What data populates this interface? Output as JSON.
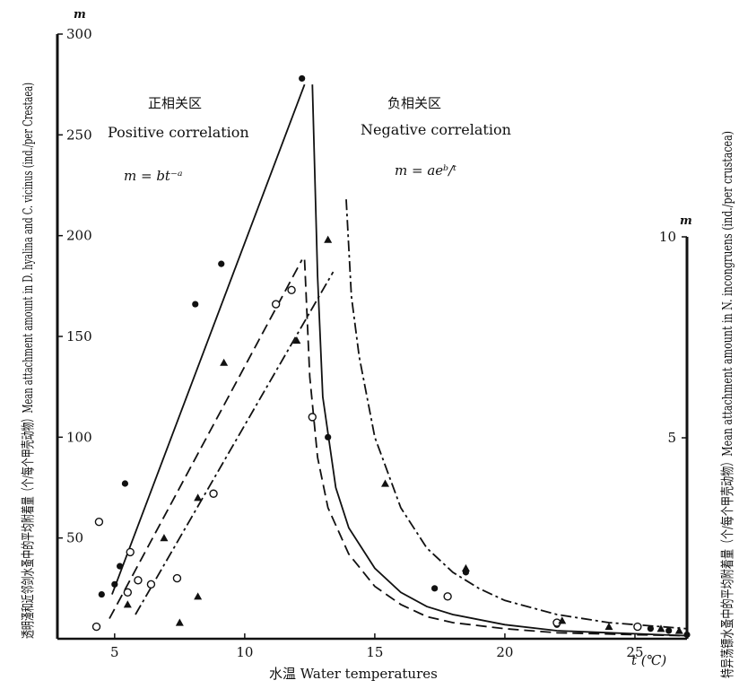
{
  "chart_data": {
    "type": "scatter",
    "x_axis": {
      "label": "水温 Water temperatures",
      "unit_label": "t (℃)",
      "range": [
        2.8,
        27
      ],
      "ticks": [
        5,
        10,
        15,
        20,
        25
      ],
      "tick_labels": [
        "5",
        "10",
        "15",
        "20",
        "25"
      ]
    },
    "y_axis_left": {
      "label": "透明溞和近邻剑水蚤中的平均附着量（个/每个甲壳动物）Mean attachment amount in D. hyalina and C. vicinus (ind./per Crestaea)",
      "symbol": "m",
      "range": [
        0,
        300
      ],
      "ticks": [
        50,
        100,
        150,
        200,
        250,
        300
      ],
      "tick_labels": [
        "50",
        "100",
        "150",
        "200",
        "250",
        "300"
      ]
    },
    "y_axis_right": {
      "label": "特异荡镖水蚤中的平均附着量（个/每个甲壳动物）Mean attachment amount in N. incongruens (ind./per crustacea)",
      "symbol": "m",
      "range": [
        0,
        10
      ],
      "ticks": [
        5,
        10
      ],
      "tick_labels": [
        "5",
        "10"
      ]
    },
    "regions": [
      {
        "title_cn": "正相关区",
        "title_en": "Positive correlation",
        "formula": "m = bt⁻ᵃ"
      },
      {
        "title_cn": "负相关区",
        "title_en": "Negative correlation",
        "formula": "m = aeᵇ/ᵗ"
      }
    ],
    "series": [
      {
        "marker": "filled-circle",
        "line": "solid",
        "points": [
          [
            4.5,
            22
          ],
          [
            5.0,
            27
          ],
          [
            5.2,
            36
          ],
          [
            5.4,
            77
          ],
          [
            8.1,
            166
          ],
          [
            9.1,
            186
          ],
          [
            12.2,
            278
          ],
          [
            13.2,
            100
          ],
          [
            17.3,
            25
          ],
          [
            18.5,
            33
          ],
          [
            22.0,
            7
          ],
          [
            25.6,
            5
          ],
          [
            26.3,
            4
          ],
          [
            27.0,
            2
          ]
        ],
        "curve": {
          "rising": [
            [
              4.9,
              22
            ],
            [
              12.3,
              275
            ]
          ],
          "falling": [
            [
              12.6,
              275
            ],
            [
              12.8,
              180
            ],
            [
              13.0,
              120
            ],
            [
              13.5,
              75
            ],
            [
              14,
              55
            ],
            [
              15,
              35
            ],
            [
              16,
              23
            ],
            [
              17,
              16
            ],
            [
              18,
              12
            ],
            [
              20,
              7
            ],
            [
              22,
              4
            ],
            [
              24,
              3
            ],
            [
              26,
              2
            ],
            [
              27,
              1.5
            ]
          ]
        }
      },
      {
        "marker": "open-circle",
        "line": "dashed",
        "points": [
          [
            4.3,
            6
          ],
          [
            4.4,
            58
          ],
          [
            5.5,
            23
          ],
          [
            5.6,
            43
          ],
          [
            5.9,
            29
          ],
          [
            6.4,
            27
          ],
          [
            7.4,
            30
          ],
          [
            8.8,
            72
          ],
          [
            11.2,
            166
          ],
          [
            11.8,
            173
          ],
          [
            12.6,
            110
          ],
          [
            17.8,
            21
          ],
          [
            22.0,
            8
          ],
          [
            25.1,
            6
          ]
        ],
        "curve": {
          "rising": [
            [
              4.8,
              10
            ],
            [
              12.2,
              188
            ]
          ],
          "falling": [
            [
              12.3,
              188
            ],
            [
              12.5,
              130
            ],
            [
              12.8,
              90
            ],
            [
              13.2,
              65
            ],
            [
              14,
              42
            ],
            [
              15,
              26
            ],
            [
              16,
              17
            ],
            [
              17,
              11
            ],
            [
              18,
              8
            ],
            [
              20,
              5
            ],
            [
              22,
              3
            ],
            [
              25,
              2
            ],
            [
              27,
              1.5
            ]
          ]
        }
      },
      {
        "marker": "filled-triangle",
        "line": "dash-dot",
        "points": [
          [
            5.5,
            17
          ],
          [
            6.9,
            50
          ],
          [
            7.5,
            8
          ],
          [
            8.2,
            70
          ],
          [
            8.2,
            21
          ],
          [
            9.2,
            137
          ],
          [
            12.0,
            148
          ],
          [
            13.2,
            198
          ],
          [
            15.4,
            77
          ],
          [
            18.5,
            35
          ],
          [
            22.2,
            9
          ],
          [
            24.0,
            6
          ],
          [
            26.0,
            5
          ],
          [
            26.7,
            4
          ]
        ],
        "curve": {
          "rising": [
            [
              5.8,
              12
            ],
            [
              13.4,
              182
            ]
          ],
          "falling": [
            [
              13.9,
              218
            ],
            [
              14.1,
              170
            ],
            [
              14.4,
              140
            ],
            [
              15,
              100
            ],
            [
              16,
              65
            ],
            [
              17,
              45
            ],
            [
              18,
              33
            ],
            [
              19,
              25
            ],
            [
              20,
              19
            ],
            [
              22,
              12
            ],
            [
              24,
              8
            ],
            [
              26,
              6
            ],
            [
              27,
              5
            ]
          ]
        }
      }
    ],
    "legend": "none"
  }
}
